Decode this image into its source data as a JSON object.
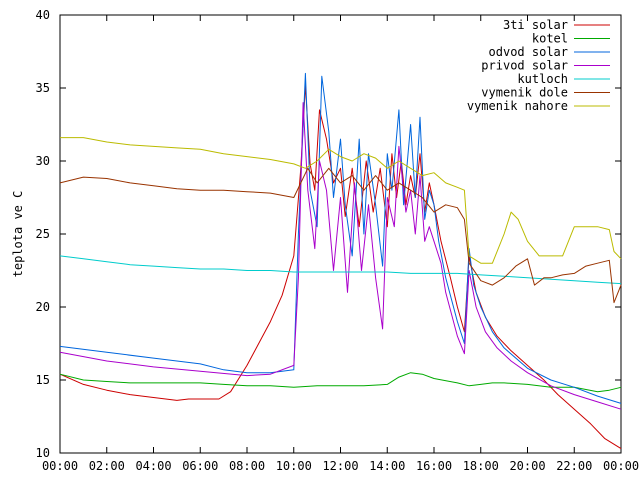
{
  "chart_data": {
    "type": "line",
    "title": "",
    "xlabel": "",
    "ylabel": "teplota ve C",
    "xlim": [
      0,
      24
    ],
    "ylim": [
      10,
      40
    ],
    "grid": false,
    "legend_position": "top-right",
    "x_ticks": [
      {
        "value": 0,
        "label": "00:00"
      },
      {
        "value": 2,
        "label": "02:00"
      },
      {
        "value": 4,
        "label": "04:00"
      },
      {
        "value": 6,
        "label": "06:00"
      },
      {
        "value": 8,
        "label": "08:00"
      },
      {
        "value": 10,
        "label": "10:00"
      },
      {
        "value": 12,
        "label": "12:00"
      },
      {
        "value": 14,
        "label": "14:00"
      },
      {
        "value": 16,
        "label": "16:00"
      },
      {
        "value": 18,
        "label": "18:00"
      },
      {
        "value": 20,
        "label": "20:00"
      },
      {
        "value": 22,
        "label": "22:00"
      },
      {
        "value": 24,
        "label": "00:00"
      }
    ],
    "y_ticks": [
      {
        "value": 10,
        "label": "10"
      },
      {
        "value": 15,
        "label": "15"
      },
      {
        "value": 20,
        "label": "20"
      },
      {
        "value": 25,
        "label": "25"
      },
      {
        "value": 30,
        "label": "30"
      },
      {
        "value": 35,
        "label": "35"
      },
      {
        "value": 40,
        "label": "40"
      }
    ],
    "series": [
      {
        "name": "3ti solar",
        "color": "#cc0000",
        "points": [
          [
            0,
            15.4
          ],
          [
            1,
            14.7
          ],
          [
            2,
            14.3
          ],
          [
            3,
            14.0
          ],
          [
            4,
            13.8
          ],
          [
            5,
            13.6
          ],
          [
            5.5,
            13.7
          ],
          [
            6,
            13.7
          ],
          [
            6.8,
            13.7
          ],
          [
            7.3,
            14.2
          ],
          [
            8,
            16.0
          ],
          [
            8.5,
            17.5
          ],
          [
            9,
            19.0
          ],
          [
            9.5,
            20.8
          ],
          [
            10,
            23.5
          ],
          [
            10.3,
            29.5
          ],
          [
            10.5,
            35.2
          ],
          [
            10.7,
            29.8
          ],
          [
            10.9,
            28.0
          ],
          [
            11.1,
            33.5
          ],
          [
            11.4,
            31.5
          ],
          [
            11.7,
            28.5
          ],
          [
            12,
            29.5
          ],
          [
            12.2,
            26.2
          ],
          [
            12.5,
            29.5
          ],
          [
            12.8,
            25.5
          ],
          [
            13.1,
            30.0
          ],
          [
            13.4,
            26.5
          ],
          [
            13.7,
            29.5
          ],
          [
            14.0,
            25.5
          ],
          [
            14.2,
            30.5
          ],
          [
            14.4,
            27.5
          ],
          [
            14.6,
            30.0
          ],
          [
            14.8,
            27.0
          ],
          [
            15.0,
            29.0
          ],
          [
            15.2,
            27.5
          ],
          [
            15.4,
            30.5
          ],
          [
            15.6,
            26.5
          ],
          [
            15.8,
            28.5
          ],
          [
            16.0,
            27.0
          ],
          [
            16.3,
            24.5
          ],
          [
            16.7,
            22.0
          ],
          [
            17.0,
            20.0
          ],
          [
            17.3,
            18.3
          ],
          [
            17.5,
            23.5
          ],
          [
            17.8,
            21.0
          ],
          [
            18.2,
            19.3
          ],
          [
            18.7,
            18.0
          ],
          [
            19.3,
            17.0
          ],
          [
            20,
            16.0
          ],
          [
            20.7,
            15.0
          ],
          [
            21.3,
            14.0
          ],
          [
            22,
            13.0
          ],
          [
            22.7,
            12.0
          ],
          [
            23.3,
            11.0
          ],
          [
            24,
            10.3
          ]
        ]
      },
      {
        "name": "kotel",
        "color": "#00aa00",
        "points": [
          [
            0,
            15.4
          ],
          [
            1,
            15.0
          ],
          [
            2,
            14.9
          ],
          [
            3,
            14.8
          ],
          [
            4,
            14.8
          ],
          [
            5,
            14.8
          ],
          [
            6,
            14.8
          ],
          [
            7,
            14.7
          ],
          [
            8,
            14.6
          ],
          [
            9,
            14.6
          ],
          [
            10,
            14.5
          ],
          [
            11,
            14.6
          ],
          [
            12,
            14.6
          ],
          [
            13,
            14.6
          ],
          [
            14,
            14.7
          ],
          [
            14.5,
            15.2
          ],
          [
            15,
            15.5
          ],
          [
            15.5,
            15.4
          ],
          [
            16,
            15.1
          ],
          [
            17,
            14.8
          ],
          [
            17.5,
            14.6
          ],
          [
            18,
            14.7
          ],
          [
            18.5,
            14.8
          ],
          [
            19,
            14.8
          ],
          [
            20,
            14.7
          ],
          [
            21,
            14.5
          ],
          [
            22,
            14.5
          ],
          [
            23,
            14.2
          ],
          [
            23.5,
            14.3
          ],
          [
            24,
            14.5
          ]
        ]
      },
      {
        "name": "odvod solar",
        "color": "#0066dd",
        "points": [
          [
            0,
            17.3
          ],
          [
            2,
            16.9
          ],
          [
            4,
            16.5
          ],
          [
            6,
            16.1
          ],
          [
            7,
            15.7
          ],
          [
            8,
            15.5
          ],
          [
            9,
            15.5
          ],
          [
            10,
            15.7
          ],
          [
            10.2,
            25.0
          ],
          [
            10.5,
            36.0
          ],
          [
            10.7,
            28.0
          ],
          [
            11.0,
            25.5
          ],
          [
            11.2,
            35.8
          ],
          [
            11.5,
            32.0
          ],
          [
            11.7,
            27.5
          ],
          [
            12.0,
            31.5
          ],
          [
            12.2,
            27.0
          ],
          [
            12.5,
            23.5
          ],
          [
            12.8,
            31.5
          ],
          [
            13.0,
            25.0
          ],
          [
            13.2,
            30.5
          ],
          [
            13.5,
            27.0
          ],
          [
            13.8,
            22.8
          ],
          [
            14.0,
            30.5
          ],
          [
            14.2,
            28.0
          ],
          [
            14.5,
            33.5
          ],
          [
            14.7,
            27.0
          ],
          [
            15.0,
            32.5
          ],
          [
            15.2,
            27.5
          ],
          [
            15.4,
            33.0
          ],
          [
            15.6,
            26.0
          ],
          [
            15.8,
            28.0
          ],
          [
            16.0,
            27.0
          ],
          [
            16.2,
            24.5
          ],
          [
            16.5,
            22.0
          ],
          [
            17.0,
            19.0
          ],
          [
            17.3,
            17.5
          ],
          [
            17.5,
            24.0
          ],
          [
            17.7,
            21.5
          ],
          [
            18.0,
            20.0
          ],
          [
            18.5,
            18.3
          ],
          [
            19.0,
            17.2
          ],
          [
            20,
            15.8
          ],
          [
            21,
            15.0
          ],
          [
            22,
            14.5
          ],
          [
            23,
            13.9
          ],
          [
            24,
            13.4
          ]
        ]
      },
      {
        "name": "privod solar",
        "color": "#aa00cc",
        "points": [
          [
            0,
            16.9
          ],
          [
            2,
            16.3
          ],
          [
            4,
            15.9
          ],
          [
            6,
            15.6
          ],
          [
            8,
            15.3
          ],
          [
            9,
            15.4
          ],
          [
            10,
            16.0
          ],
          [
            10.2,
            22.0
          ],
          [
            10.4,
            34.0
          ],
          [
            10.6,
            28.0
          ],
          [
            10.9,
            24.0
          ],
          [
            11.1,
            30.0
          ],
          [
            11.4,
            28.0
          ],
          [
            11.7,
            22.5
          ],
          [
            12.0,
            27.5
          ],
          [
            12.3,
            21.0
          ],
          [
            12.6,
            28.5
          ],
          [
            12.9,
            22.5
          ],
          [
            13.2,
            27.0
          ],
          [
            13.5,
            22.0
          ],
          [
            13.8,
            18.5
          ],
          [
            14.0,
            27.5
          ],
          [
            14.3,
            25.5
          ],
          [
            14.5,
            31.0
          ],
          [
            14.8,
            26.5
          ],
          [
            15.0,
            28.0
          ],
          [
            15.2,
            25.0
          ],
          [
            15.4,
            29.0
          ],
          [
            15.6,
            24.5
          ],
          [
            15.8,
            25.5
          ],
          [
            16.0,
            24.5
          ],
          [
            16.3,
            23.0
          ],
          [
            16.5,
            21.0
          ],
          [
            17.0,
            18.0
          ],
          [
            17.3,
            16.8
          ],
          [
            17.5,
            22.5
          ],
          [
            17.8,
            20.0
          ],
          [
            18.2,
            18.3
          ],
          [
            18.7,
            17.2
          ],
          [
            19.3,
            16.3
          ],
          [
            20,
            15.5
          ],
          [
            21,
            14.6
          ],
          [
            22,
            14.0
          ],
          [
            23,
            13.5
          ],
          [
            24,
            13.0
          ]
        ]
      },
      {
        "name": "kutloch",
        "color": "#00cccc",
        "points": [
          [
            0,
            23.5
          ],
          [
            1,
            23.3
          ],
          [
            2,
            23.1
          ],
          [
            3,
            22.9
          ],
          [
            4,
            22.8
          ],
          [
            5,
            22.7
          ],
          [
            6,
            22.6
          ],
          [
            7,
            22.6
          ],
          [
            8,
            22.5
          ],
          [
            9,
            22.5
          ],
          [
            10,
            22.4
          ],
          [
            11,
            22.4
          ],
          [
            12,
            22.4
          ],
          [
            13,
            22.4
          ],
          [
            14,
            22.4
          ],
          [
            15,
            22.3
          ],
          [
            16,
            22.3
          ],
          [
            17,
            22.3
          ],
          [
            18,
            22.2
          ],
          [
            19,
            22.1
          ],
          [
            20,
            22.0
          ],
          [
            21,
            21.9
          ],
          [
            22,
            21.8
          ],
          [
            23,
            21.7
          ],
          [
            24,
            21.6
          ]
        ]
      },
      {
        "name": "vymenik dole",
        "color": "#993300",
        "points": [
          [
            0,
            28.5
          ],
          [
            1,
            28.9
          ],
          [
            2,
            28.8
          ],
          [
            3,
            28.5
          ],
          [
            4,
            28.3
          ],
          [
            5,
            28.1
          ],
          [
            6,
            28.0
          ],
          [
            7,
            28.0
          ],
          [
            8,
            27.9
          ],
          [
            9,
            27.8
          ],
          [
            10,
            27.5
          ],
          [
            10.3,
            28.5
          ],
          [
            10.6,
            29.5
          ],
          [
            11,
            28.5
          ],
          [
            11.5,
            29.5
          ],
          [
            12,
            28.5
          ],
          [
            12.5,
            29.0
          ],
          [
            13,
            28.0
          ],
          [
            13.5,
            29.0
          ],
          [
            14,
            28.0
          ],
          [
            14.5,
            28.5
          ],
          [
            15,
            28.0
          ],
          [
            15.5,
            27.5
          ],
          [
            16,
            26.5
          ],
          [
            16.5,
            27.0
          ],
          [
            17,
            26.8
          ],
          [
            17.3,
            26.0
          ],
          [
            17.5,
            23.0
          ],
          [
            18,
            21.8
          ],
          [
            18.5,
            21.5
          ],
          [
            19,
            22.0
          ],
          [
            19.5,
            22.8
          ],
          [
            20,
            23.3
          ],
          [
            20.3,
            21.5
          ],
          [
            20.7,
            22.0
          ],
          [
            21,
            22.0
          ],
          [
            21.5,
            22.2
          ],
          [
            22,
            22.3
          ],
          [
            22.5,
            22.8
          ],
          [
            23,
            23.0
          ],
          [
            23.5,
            23.2
          ],
          [
            23.7,
            20.3
          ],
          [
            24,
            21.5
          ]
        ]
      },
      {
        "name": "vymenik nahore",
        "color": "#bbbb00",
        "points": [
          [
            0,
            31.6
          ],
          [
            1,
            31.6
          ],
          [
            2,
            31.3
          ],
          [
            3,
            31.1
          ],
          [
            4,
            31.0
          ],
          [
            5,
            30.9
          ],
          [
            6,
            30.8
          ],
          [
            7,
            30.5
          ],
          [
            8,
            30.3
          ],
          [
            9,
            30.1
          ],
          [
            10,
            29.8
          ],
          [
            10.5,
            29.5
          ],
          [
            11,
            30.0
          ],
          [
            11.5,
            30.8
          ],
          [
            12,
            30.3
          ],
          [
            12.5,
            30.0
          ],
          [
            13,
            30.5
          ],
          [
            13.5,
            30.2
          ],
          [
            14,
            29.5
          ],
          [
            14.5,
            30.0
          ],
          [
            15,
            29.5
          ],
          [
            15.5,
            29.0
          ],
          [
            16,
            29.2
          ],
          [
            16.5,
            28.5
          ],
          [
            17,
            28.2
          ],
          [
            17.3,
            28.0
          ],
          [
            17.5,
            23.5
          ],
          [
            18,
            23.0
          ],
          [
            18.5,
            23.0
          ],
          [
            19,
            25.0
          ],
          [
            19.3,
            26.5
          ],
          [
            19.6,
            26.0
          ],
          [
            20,
            24.5
          ],
          [
            20.5,
            23.5
          ],
          [
            21,
            23.5
          ],
          [
            21.5,
            23.5
          ],
          [
            22,
            25.5
          ],
          [
            22.5,
            25.5
          ],
          [
            23,
            25.5
          ],
          [
            23.5,
            25.3
          ],
          [
            23.7,
            23.8
          ],
          [
            24,
            23.3
          ]
        ]
      }
    ]
  }
}
